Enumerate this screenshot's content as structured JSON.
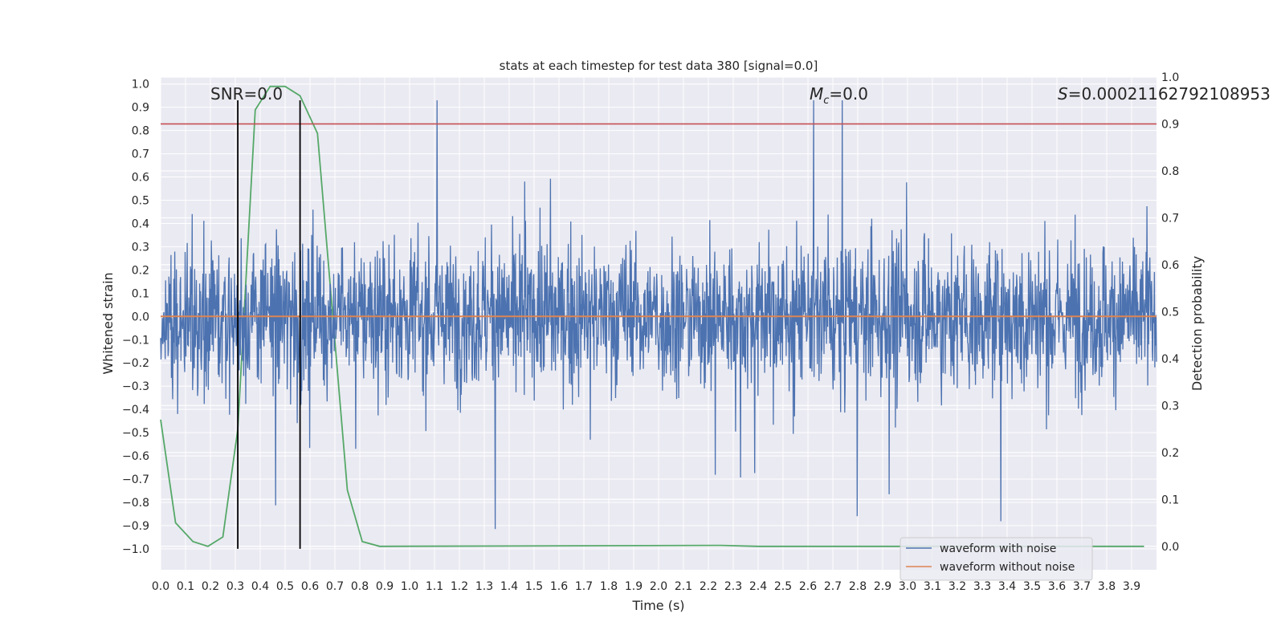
{
  "chart_data": {
    "type": "line",
    "title": "stats at each timestep for test data 380 [signal=0.0]",
    "xlabel": "Time (s)",
    "ylabel": "Whitened strain",
    "ylabel_right": "Detection probability",
    "xlim": [
      0.0,
      4.0
    ],
    "ylim": [
      -1.09,
      1.03
    ],
    "ylim_right": [
      -0.05,
      1.0
    ],
    "x_ticks": [
      "0.0",
      "0.1",
      "0.2",
      "0.3",
      "0.4",
      "0.5",
      "0.6",
      "0.7",
      "0.8",
      "0.9",
      "1.0",
      "1.1",
      "1.2",
      "1.3",
      "1.4",
      "1.5",
      "1.6",
      "1.7",
      "1.8",
      "1.9",
      "2.0",
      "2.1",
      "2.2",
      "2.3",
      "2.4",
      "2.5",
      "2.6",
      "2.7",
      "2.8",
      "2.9",
      "3.0",
      "3.1",
      "3.2",
      "3.3",
      "3.4",
      "3.5",
      "3.6",
      "3.7",
      "3.8",
      "3.9"
    ],
    "y_ticks": [
      "1.0",
      "0.9",
      "0.8",
      "0.7",
      "0.6",
      "0.5",
      "0.4",
      "0.3",
      "0.2",
      "0.1",
      "0.0",
      "−0.1",
      "−0.2",
      "−0.3",
      "−0.4",
      "−0.5",
      "−0.6",
      "−0.7",
      "−0.8",
      "−0.9",
      "−1.0"
    ],
    "y_ticks_right": [
      "1.0",
      "0.9",
      "0.8",
      "0.7",
      "0.6",
      "0.5",
      "0.4",
      "0.3",
      "0.2",
      "0.1",
      "0.0"
    ],
    "annotations": {
      "snr": "SNR=0.0",
      "mc_symbol": "M",
      "mc_sub": "c",
      "mc_value": "=0.0",
      "s_symbol": "S",
      "s_value": "=0.00021162792108953"
    },
    "series": [
      {
        "name": "waveform with noise",
        "color": "#4c72b0",
        "note_style": "dense noise",
        "amplitude_envelope": [
          -0.99,
          0.93
        ]
      },
      {
        "name": "waveform without noise",
        "color": "#dd8452",
        "x": [
          0.0,
          4.0
        ],
        "y": [
          0.0,
          0.0
        ]
      },
      {
        "color": "#55a868",
        "axis": "right",
        "x": [
          0.0,
          0.06,
          0.13,
          0.19,
          0.25,
          0.31,
          0.38,
          0.44,
          0.5,
          0.56,
          0.63,
          0.69,
          0.75,
          0.81,
          0.88,
          2.25,
          2.4,
          3.95
        ],
        "y": [
          0.27,
          0.05,
          0.01,
          0.0,
          0.02,
          0.25,
          0.93,
          0.98,
          0.98,
          0.96,
          0.88,
          0.5,
          0.12,
          0.01,
          0.0,
          0.002,
          0.0,
          0.0
        ]
      }
    ],
    "threshold_line": {
      "color": "#c44e52",
      "y_right": 0.9
    },
    "vertical_markers": {
      "color": "#000000",
      "x": [
        0.31,
        0.56
      ],
      "y_range": [
        -1.0,
        0.93
      ]
    },
    "legend": {
      "placement": "lower-right"
    },
    "grid": true
  }
}
